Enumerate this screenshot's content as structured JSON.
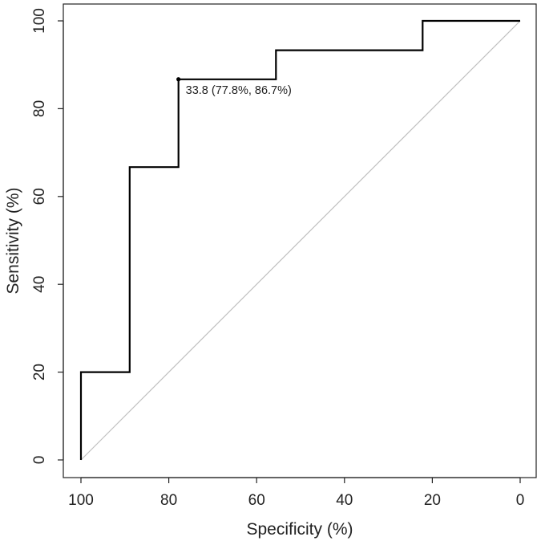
{
  "chart_data": {
    "type": "line",
    "title": "",
    "xlabel": "Specificity (%)",
    "ylabel": "Sensitivity (%)",
    "xlim": [
      100,
      0
    ],
    "ylim": [
      0,
      100
    ],
    "x_reversed": true,
    "xticks": [
      100,
      80,
      60,
      40,
      20,
      0
    ],
    "yticks": [
      0,
      20,
      40,
      60,
      80,
      100
    ],
    "grid": false,
    "legend": "none",
    "diagonal_reference": {
      "from": [
        100,
        0
      ],
      "to": [
        0,
        100
      ],
      "color": "#c0c0c0"
    },
    "series": [
      {
        "style": "step",
        "color": "#000000",
        "specificity": [
          100,
          100,
          88.9,
          88.9,
          77.8,
          77.8,
          55.6,
          55.6,
          22.2,
          22.2,
          0
        ],
        "sensitivity": [
          0,
          20,
          20,
          66.7,
          66.7,
          86.7,
          86.7,
          93.3,
          93.3,
          100,
          100
        ]
      }
    ],
    "best_threshold": {
      "specificity": 77.8,
      "sensitivity": 86.7,
      "label": "33.8 (77.8%, 86.7%)"
    }
  }
}
